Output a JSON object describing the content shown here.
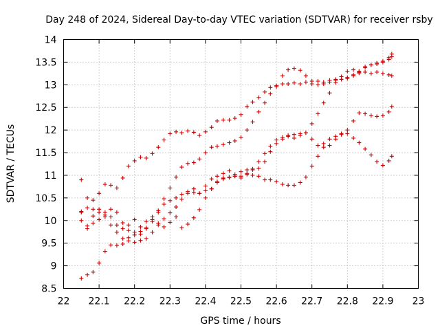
{
  "chart_data": {
    "type": "scatter",
    "title": "Day 248 of 2024, Sidereal Day-to-day VTEC variation (SDTVAR) for receiver rsby",
    "xlabel": "GPS time / hours",
    "ylabel": "SDTVAR / TECUs",
    "xlim": [
      22,
      23
    ],
    "ylim": [
      8.5,
      14
    ],
    "x_ticks": [
      "22",
      "22.1",
      "22.2",
      "22.3",
      "22.4",
      "22.5",
      "22.6",
      "22.7",
      "22.8",
      "22.9",
      "23"
    ],
    "y_ticks": [
      "8.5",
      "9",
      "9.5",
      "10",
      "10.5",
      "11",
      "11.5",
      "12",
      "12.5",
      "13",
      "13.5",
      "14"
    ],
    "grid": true,
    "legend": "none",
    "marker": "plus",
    "color": "#cc0000",
    "series": [
      {
        "x": [
          22.05,
          22.067,
          22.083,
          22.1,
          22.117,
          22.133,
          22.15,
          22.167,
          22.183,
          22.2,
          22.217,
          22.233,
          22.25,
          22.267,
          22.283,
          22.3,
          22.317,
          22.333,
          22.35,
          22.367,
          22.383,
          22.4,
          22.417,
          22.433,
          22.45,
          22.467,
          22.483,
          22.5,
          22.517,
          22.533,
          22.55,
          22.567,
          22.583,
          22.6,
          22.617,
          22.633,
          22.65,
          22.667,
          22.683,
          22.7,
          22.717,
          22.733,
          22.75,
          22.767,
          22.783,
          22.8,
          22.817,
          22.833,
          22.85,
          22.867,
          22.883,
          22.9,
          22.917,
          22.925
        ],
        "y": [
          8.72,
          8.8,
          8.86,
          9.06,
          9.32,
          9.46,
          9.45,
          9.48,
          9.55,
          9.52,
          9.56,
          9.6,
          9.74,
          9.9,
          10.04,
          10.17,
          10.3,
          10.47,
          10.6,
          10.62,
          10.6,
          10.66,
          10.7,
          10.84,
          10.92,
          10.95,
          10.98,
          11.08,
          11.12,
          11.12,
          11.15,
          11.3,
          11.52,
          11.7,
          11.8,
          11.86,
          11.9,
          11.92,
          11.94,
          12.14,
          12.36,
          12.6,
          12.82,
          13.05,
          13.18,
          13.3,
          13.33,
          13.3,
          13.28,
          13.25,
          13.28,
          13.25,
          13.22,
          13.2
        ]
      },
      {
        "x": [
          22.05,
          22.067,
          22.083,
          22.1,
          22.117,
          22.133,
          22.15,
          22.167,
          22.183,
          22.2,
          22.217,
          22.233,
          22.25,
          22.267,
          22.283,
          22.3,
          22.317,
          22.333,
          22.35,
          22.367,
          22.383,
          22.4,
          22.417,
          22.433,
          22.45,
          22.467,
          22.483,
          22.5,
          22.517,
          22.533,
          22.55,
          22.567,
          22.583,
          22.6,
          22.617,
          22.633,
          22.65,
          22.667,
          22.683,
          22.7,
          22.717,
          22.733,
          22.75,
          22.767,
          22.783,
          22.8,
          22.817,
          22.833,
          22.85,
          22.867,
          22.883,
          22.9,
          22.917,
          22.925
        ],
        "y": [
          10.9,
          10.5,
          10.25,
          10.6,
          10.8,
          10.78,
          10.72,
          10.94,
          11.2,
          11.32,
          11.4,
          11.38,
          11.48,
          11.62,
          11.78,
          11.92,
          11.96,
          11.94,
          11.98,
          11.95,
          11.88,
          11.96,
          12.06,
          12.2,
          12.22,
          12.22,
          12.26,
          12.34,
          12.52,
          12.62,
          12.72,
          12.84,
          12.94,
          12.96,
          13.02,
          13.02,
          13.04,
          13.02,
          13.06,
          13.02,
          13.08,
          13.06,
          13.1,
          13.12,
          13.12,
          13.14,
          13.2,
          13.26,
          13.38,
          13.44,
          13.48,
          13.52,
          13.6,
          13.68
        ]
      },
      {
        "x": [
          22.05,
          22.067,
          22.083,
          22.1,
          22.117,
          22.133,
          22.15,
          22.167,
          22.183,
          22.2,
          22.217,
          22.233,
          22.25,
          22.267,
          22.283,
          22.3,
          22.317,
          22.333,
          22.35,
          22.367,
          22.383,
          22.4,
          22.417,
          22.433,
          22.45,
          22.467,
          22.483,
          22.5,
          22.517,
          22.533,
          22.55,
          22.567,
          22.583,
          22.6,
          22.617,
          22.633,
          22.65,
          22.667,
          22.683,
          22.7,
          22.717,
          22.733,
          22.75,
          22.767,
          22.783,
          22.8,
          22.817,
          22.833,
          22.85,
          22.867,
          22.883,
          22.9,
          22.917,
          22.925
        ],
        "y": [
          10.2,
          10.28,
          10.45,
          10.25,
          10.18,
          10.08,
          9.9,
          9.82,
          9.78,
          9.74,
          9.7,
          9.82,
          9.98,
          10.18,
          10.48,
          10.72,
          10.96,
          11.18,
          11.26,
          11.28,
          11.36,
          11.5,
          11.62,
          11.64,
          11.68,
          11.72,
          11.76,
          11.84,
          12.0,
          12.18,
          12.4,
          12.6,
          12.8,
          12.98,
          13.2,
          13.33,
          13.36,
          13.32,
          13.2,
          13.08,
          13.0,
          13.02,
          13.06,
          13.1,
          13.12,
          13.16,
          13.22,
          13.28,
          13.4,
          13.44,
          13.46,
          13.5,
          13.56,
          13.62
        ]
      },
      {
        "x": [
          22.05,
          22.067,
          22.083,
          22.1,
          22.117,
          22.133,
          22.15,
          22.167,
          22.183,
          22.2,
          22.217,
          22.233,
          22.25,
          22.267,
          22.283,
          22.3,
          22.317,
          22.333,
          22.35,
          22.367,
          22.383,
          22.4,
          22.417,
          22.433,
          22.45,
          22.467,
          22.483,
          22.5,
          22.517,
          22.533,
          22.55,
          22.567,
          22.583,
          22.6,
          22.617,
          22.633,
          22.65,
          22.667,
          22.683,
          22.7,
          22.717,
          22.733,
          22.75,
          22.767,
          22.783,
          22.8,
          22.817,
          22.833,
          22.85,
          22.867,
          22.883,
          22.9,
          22.917,
          22.925
        ],
        "y": [
          10.0,
          9.88,
          10.1,
          10.02,
          10.12,
          10.25,
          10.18,
          9.95,
          9.9,
          10.02,
          9.86,
          9.98,
          10.08,
          10.22,
          10.36,
          10.44,
          10.5,
          10.58,
          10.64,
          10.7,
          10.6,
          10.76,
          10.92,
          10.98,
          11.04,
          11.1,
          11.02,
          10.94,
          11.04,
          11.0,
          10.98,
          10.9,
          10.9,
          10.86,
          10.8,
          10.78,
          10.78,
          10.84,
          10.96,
          11.2,
          11.42,
          11.62,
          11.66,
          11.8,
          11.92,
          12.0,
          12.2,
          12.38,
          12.36,
          12.32,
          12.3,
          12.32,
          12.4,
          12.52
        ]
      },
      {
        "x": [
          22.05,
          22.067,
          22.083,
          22.1,
          22.117,
          22.133,
          22.15,
          22.167,
          22.183,
          22.2,
          22.217,
          22.233,
          22.25,
          22.267,
          22.283,
          22.3,
          22.317,
          22.333,
          22.35,
          22.367,
          22.383,
          22.4,
          22.417,
          22.433,
          22.45,
          22.467,
          22.483,
          22.5,
          22.517,
          22.533,
          22.55,
          22.567,
          22.583,
          22.6,
          22.617,
          22.633,
          22.65,
          22.667,
          22.683,
          22.7,
          22.717,
          22.733,
          22.75,
          22.767,
          22.783,
          22.8,
          22.817,
          22.833,
          22.85,
          22.867,
          22.883,
          22.9,
          22.917,
          22.925
        ],
        "y": [
          10.18,
          9.82,
          9.94,
          10.18,
          10.08,
          9.9,
          9.74,
          9.6,
          9.62,
          9.68,
          9.76,
          9.84,
          10.02,
          9.94,
          9.86,
          9.96,
          10.08,
          9.84,
          9.92,
          10.06,
          10.24,
          10.5,
          10.7,
          10.86,
          10.94,
          10.96,
          10.98,
          10.98,
          11.02,
          11.14,
          11.3,
          11.48,
          11.64,
          11.78,
          11.84,
          11.88,
          11.82,
          11.88,
          11.94,
          11.8,
          11.66,
          11.7,
          11.8,
          11.86,
          11.9,
          11.92,
          11.82,
          11.72,
          11.58,
          11.45,
          11.3,
          11.22,
          11.32,
          11.42
        ]
      }
    ]
  }
}
